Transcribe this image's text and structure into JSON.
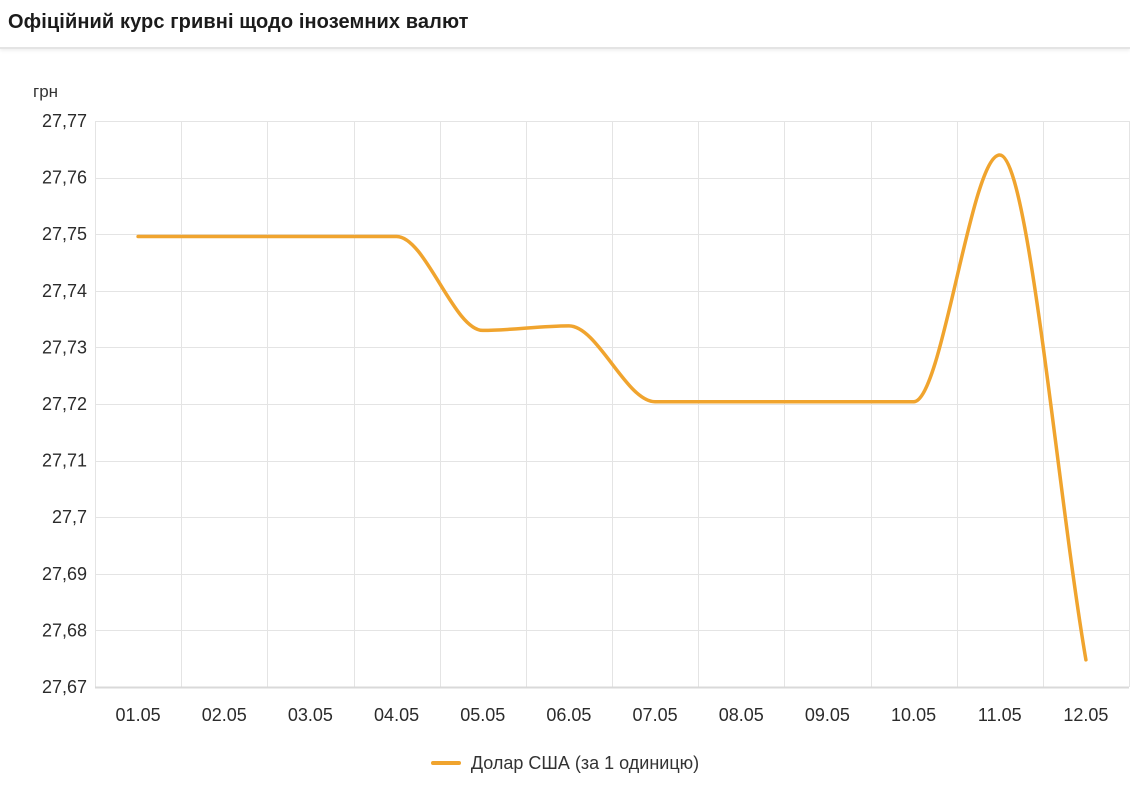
{
  "header": {
    "title": "Офіційний курс гривні щодо іноземних валют"
  },
  "chart_data": {
    "type": "line",
    "title": "Офіційний курс гривні щодо іноземних валют",
    "unit_label": "грн",
    "categories": [
      "01.05",
      "02.05",
      "03.05",
      "04.05",
      "05.05",
      "06.05",
      "07.05",
      "08.05",
      "09.05",
      "10.05",
      "11.05",
      "12.05"
    ],
    "series": [
      {
        "name": "Долар США (за 1 одиницю)",
        "color": "#f0a42e",
        "values": [
          27.7496,
          27.7496,
          27.7496,
          27.7496,
          27.733,
          27.7338,
          27.7204,
          27.7204,
          27.7204,
          27.7204,
          27.764,
          27.6748
        ]
      }
    ],
    "y_tick_values": [
      27.77,
      27.76,
      27.75,
      27.74,
      27.73,
      27.72,
      27.71,
      27.7,
      27.69,
      27.68,
      27.67
    ],
    "y_tick_labels": [
      "27,77",
      "27,76",
      "27,75",
      "27,74",
      "27,73",
      "27,72",
      "27,71",
      "27,7",
      "27,69",
      "27,68",
      "27,67"
    ],
    "ylim": [
      27.67,
      27.77
    ],
    "xlabel": "",
    "ylabel": "грн",
    "grid": true,
    "line_smoothing": "spline",
    "legend_position": "bottom-center",
    "colors": {
      "line": "#f0a42e",
      "gridline": "#e4e4e4",
      "axis_line": "#d9d9d9",
      "tick_text": "#2b2b2b",
      "title_text": "#1b1b1b"
    }
  }
}
